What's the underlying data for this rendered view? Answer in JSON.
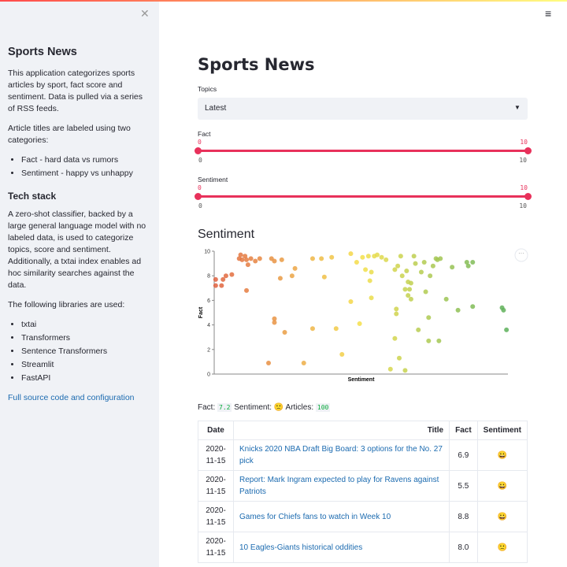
{
  "sidebar": {
    "title": "Sports News",
    "intro": "This application categorizes sports articles by sport, fact score and sentiment. Data is pulled via a series of RSS feeds.",
    "labels_text": "Article titles are labeled using two categories:",
    "categories": [
      "Fact - hard data vs rumors",
      "Sentiment - happy vs unhappy"
    ],
    "tech_heading": "Tech stack",
    "tech_text": "A zero-shot classifier, backed by a large general language model with no labeled data, is used to categorize topics, score and sentiment. Additionally, a txtai index enables ad hoc similarity searches against the data.",
    "libraries_text": "The following libraries are used:",
    "libraries": [
      "txtai",
      "Transformers",
      "Sentence Transformers",
      "Streamlit",
      "FastAPI"
    ],
    "link": "Full source code and configuration"
  },
  "main": {
    "title": "Sports News",
    "topics": {
      "label": "Topics",
      "value": "Latest"
    },
    "sliders": [
      {
        "label": "Fact",
        "value": [
          0,
          10
        ],
        "min": 0,
        "max": 10
      },
      {
        "label": "Sentiment",
        "value": [
          0,
          10
        ],
        "min": 0,
        "max": 10
      }
    ],
    "chart_heading": "Sentiment",
    "summary": {
      "fact_label": "Fact:",
      "fact": "7.2",
      "sentiment_label": "Sentiment:",
      "sentiment": "🙁",
      "articles_label": "Articles:",
      "articles": "100"
    },
    "table": {
      "columns": [
        "Date",
        "Title",
        "Fact",
        "Sentiment"
      ],
      "rows": [
        [
          "2020-11-15",
          "Knicks 2020 NBA Draft Big Board: 3 options for the No. 27 pick",
          "6.9",
          "😀"
        ],
        [
          "2020-11-15",
          "Report: Mark Ingram expected to play for Ravens against Patriots",
          "5.5",
          "😀"
        ],
        [
          "2020-11-15",
          "Games for Chiefs fans to watch in Week 10",
          "8.8",
          "😀"
        ],
        [
          "2020-11-15",
          "10 Eagles-Giants historical oddities",
          "8.0",
          "🙁"
        ]
      ]
    }
  },
  "chart_data": {
    "type": "scatter",
    "x_label": "Sentiment",
    "y_label": "Fact",
    "xlim": [
      -1,
      1
    ],
    "ylim": [
      0,
      10
    ],
    "yticks": [
      0,
      2,
      4,
      6,
      8,
      10
    ],
    "color_scale": [
      "#e0603f",
      "#f5e04a",
      "#5bb05b"
    ],
    "series": [
      {
        "x": [
          -0.99,
          -0.99,
          -0.95,
          -0.94,
          -0.92,
          -0.88,
          -0.83,
          -0.82,
          -0.81,
          -0.79,
          -0.78,
          -0.77,
          -0.75,
          -0.72,
          -0.69,
          -0.78,
          -0.61,
          -0.59,
          -0.54,
          -0.55,
          -0.59,
          -0.59,
          -0.52,
          -0.63,
          -0.47,
          -0.45,
          -0.39,
          -0.33,
          -0.33,
          -0.27,
          -0.25,
          -0.2,
          -0.17,
          -0.13,
          -0.07,
          -0.07,
          -0.03,
          -0.01,
          0.01,
          0.03,
          0.05,
          0.06,
          0.07,
          0.07,
          0.09,
          0.11,
          0.14,
          0.17,
          0.2,
          0.23,
          0.23,
          0.24,
          0.24,
          0.25,
          0.26,
          0.27,
          0.28,
          0.3,
          0.3,
          0.31,
          0.32,
          0.32,
          0.33,
          0.34,
          0.34,
          0.36,
          0.37,
          0.39,
          0.41,
          0.43,
          0.44,
          0.46,
          0.46,
          0.47,
          0.49,
          0.51,
          0.52,
          0.53,
          0.54,
          0.58,
          0.62,
          0.66,
          0.72,
          0.73,
          0.76,
          0.76,
          0.96,
          0.97,
          0.99
        ],
        "values": [
          7.7,
          7.2,
          7.2,
          7.7,
          8.0,
          8.1,
          9.4,
          9.7,
          9.3,
          9.6,
          9.3,
          8.9,
          9.4,
          9.2,
          9.4,
          6.8,
          9.4,
          9.2,
          9.3,
          7.8,
          4.5,
          4.2,
          3.4,
          0.9,
          8.0,
          8.6,
          0.9,
          9.4,
          3.7,
          9.4,
          7.9,
          9.5,
          3.7,
          1.6,
          9.8,
          5.9,
          9.1,
          4.1,
          9.5,
          8.5,
          9.6,
          7.6,
          6.2,
          8.3,
          9.6,
          9.7,
          9.5,
          9.3,
          0.4,
          2.9,
          8.5,
          5.3,
          4.9,
          8.8,
          1.3,
          9.6,
          8.0,
          0.3,
          6.9,
          8.4,
          7.5,
          6.4,
          6.9,
          6.1,
          7.4,
          9.6,
          9.0,
          3.6,
          8.3,
          9.1,
          6.7,
          4.6,
          2.7,
          8.0,
          8.8,
          9.4,
          9.3,
          2.7,
          9.4,
          6.1,
          8.7,
          5.2,
          9.1,
          8.8,
          9.1,
          5.5,
          5.4,
          5.2,
          3.6
        ]
      }
    ]
  }
}
